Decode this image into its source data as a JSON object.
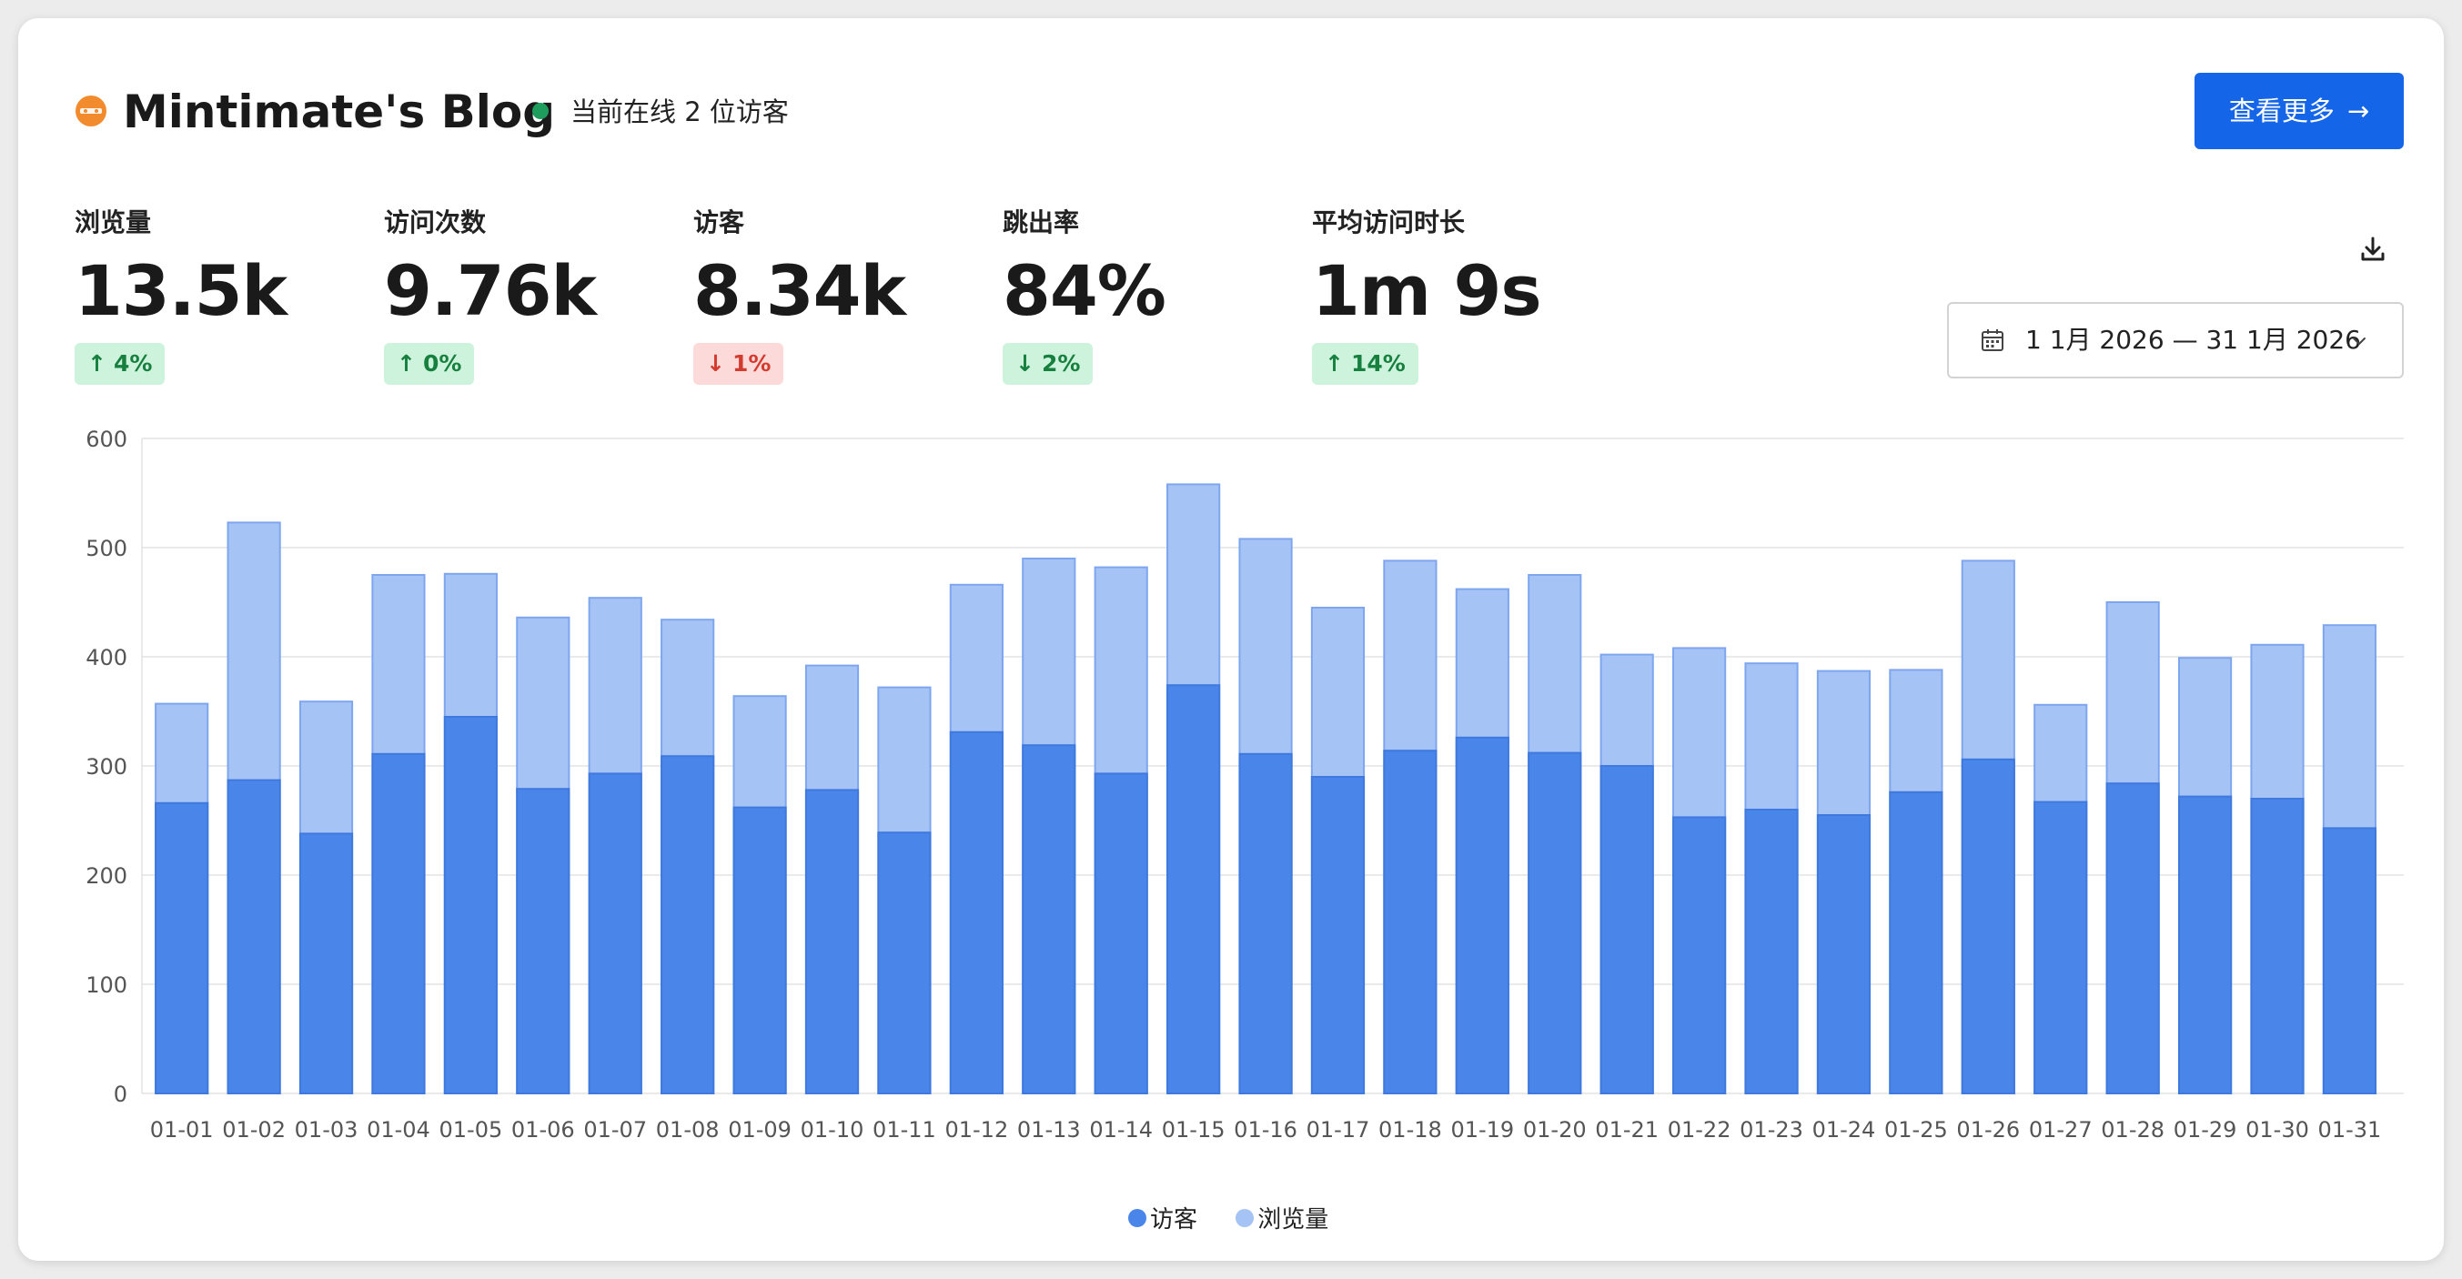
{
  "header": {
    "title": "Mintimate's Blog",
    "online_text": "当前在线 2 位访客",
    "more_button": "查看更多",
    "online_color": "#1e9d5c",
    "accent_color": "#1565e8"
  },
  "metrics": [
    {
      "label": "浏览量",
      "value": "13.5k",
      "change": "4%",
      "direction": "up"
    },
    {
      "label": "访问次数",
      "value": "9.76k",
      "change": "0%",
      "direction": "up"
    },
    {
      "label": "访客",
      "value": "8.34k",
      "change": "1%",
      "direction": "down"
    },
    {
      "label": "跳出率",
      "value": "84%",
      "change": "2%",
      "direction": "down"
    },
    {
      "label": "平均访问时长",
      "value": "1m 9s",
      "change": "14%",
      "direction": "up"
    }
  ],
  "toolbar": {
    "date_range": "1 1月 2026 — 31 1月 2026",
    "icons": [
      "download-icon",
      "calendar-icon",
      "chevron-down-icon"
    ]
  },
  "legend": {
    "visitors": "访客",
    "pageviews": "浏览量"
  },
  "chart_data": {
    "type": "bar",
    "stacked": false,
    "categories": [
      "01-01",
      "01-02",
      "01-03",
      "01-04",
      "01-05",
      "01-06",
      "01-07",
      "01-08",
      "01-09",
      "01-10",
      "01-11",
      "01-12",
      "01-13",
      "01-14",
      "01-15",
      "01-16",
      "01-17",
      "01-18",
      "01-19",
      "01-20",
      "01-21",
      "01-22",
      "01-23",
      "01-24",
      "01-25",
      "01-26",
      "01-27",
      "01-28",
      "01-29",
      "01-30",
      "01-31"
    ],
    "series": [
      {
        "name": "访客",
        "color": "#4a86ea",
        "values": [
          266,
          287,
          238,
          311,
          345,
          279,
          293,
          309,
          262,
          278,
          239,
          331,
          319,
          293,
          374,
          311,
          290,
          314,
          326,
          312,
          300,
          253,
          260,
          255,
          276,
          306,
          267,
          284,
          272,
          270,
          243
        ]
      },
      {
        "name": "浏览量",
        "color": "#a6c3f6",
        "values": [
          357,
          523,
          359,
          475,
          476,
          436,
          454,
          434,
          364,
          392,
          372,
          466,
          490,
          482,
          558,
          508,
          445,
          488,
          462,
          475,
          402,
          408,
          394,
          387,
          388,
          488,
          356,
          450,
          399,
          411,
          429
        ]
      }
    ],
    "ylim": [
      0,
      600
    ],
    "yticks": [
      0,
      100,
      200,
      300,
      400,
      500,
      600
    ],
    "grid": true,
    "legend_position": "bottom-center"
  }
}
